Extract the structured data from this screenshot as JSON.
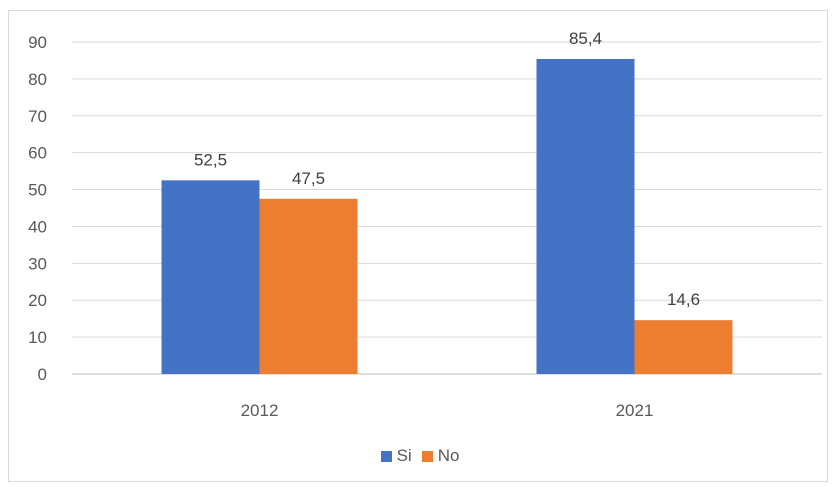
{
  "chart_data": {
    "type": "bar",
    "categories": [
      "2012",
      "2021"
    ],
    "series": [
      {
        "name": "Si",
        "values": [
          52.5,
          85.4
        ],
        "color": "#4472C4"
      },
      {
        "name": "No",
        "values": [
          47.5,
          14.6
        ],
        "color": "#ED7D31"
      }
    ],
    "data_labels": [
      [
        "52,5",
        "85,4"
      ],
      [
        "47,5",
        "14,6"
      ]
    ],
    "yticks": [
      "0",
      "10",
      "20",
      "30",
      "40",
      "50",
      "60",
      "70",
      "80",
      "90"
    ],
    "ylim": [
      0,
      90
    ],
    "grid": true,
    "legend_position": "bottom"
  }
}
